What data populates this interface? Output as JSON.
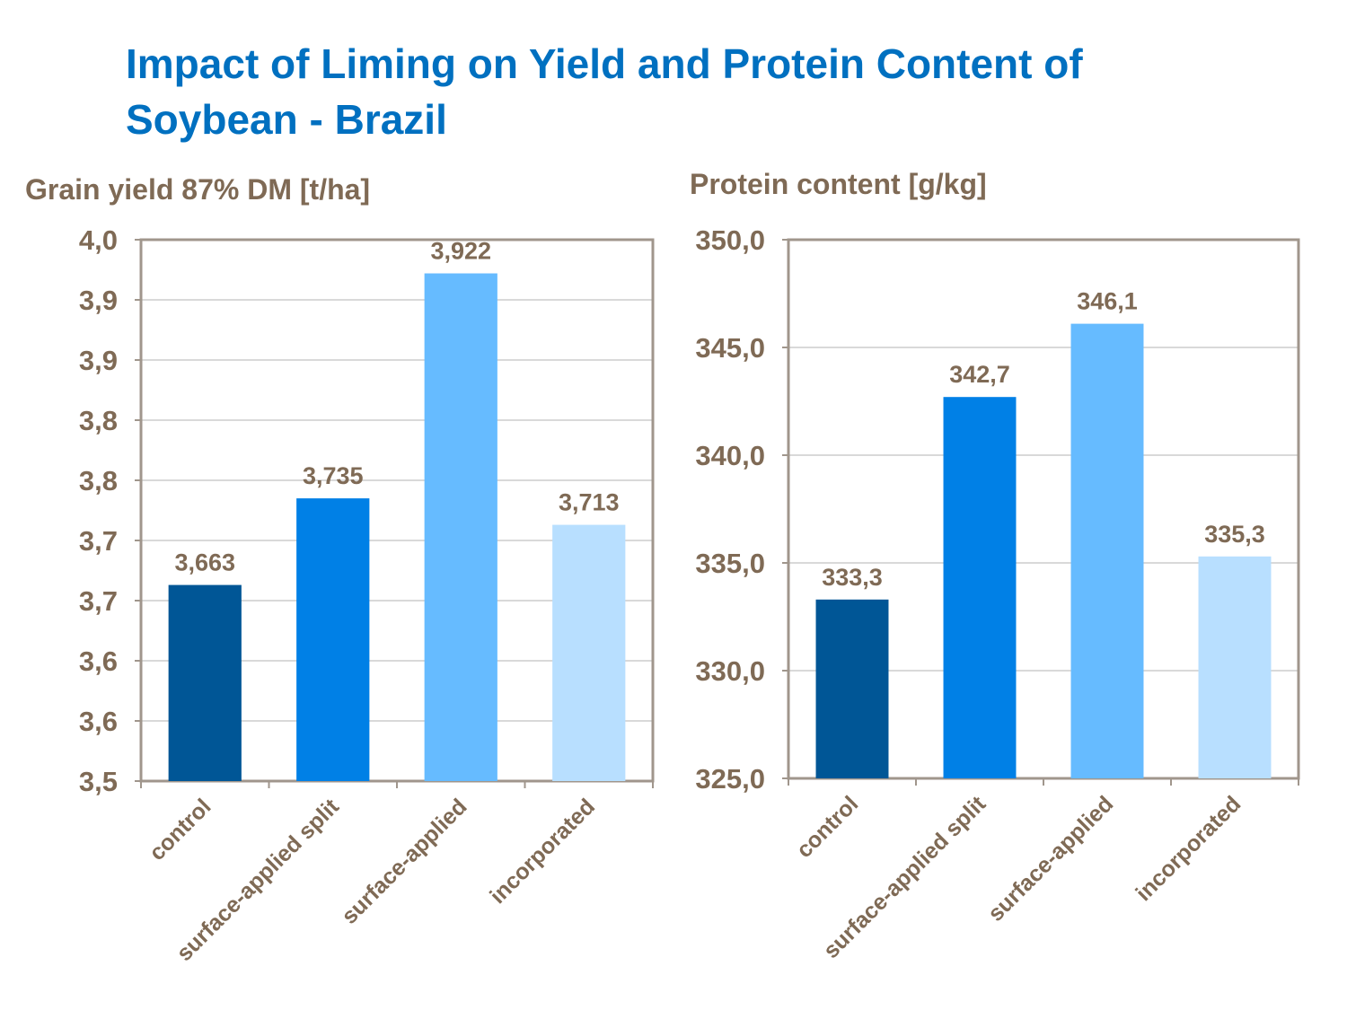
{
  "title": "Impact of Liming on Yield and Protein Content of Soybean - Brazil",
  "chart_data": [
    {
      "type": "bar",
      "ylabel": "Grain yield 87% DM [t/ha]",
      "categories": [
        "control",
        "surface-applied split",
        "surface-applied",
        "incorporated"
      ],
      "values": [
        3.663,
        3.735,
        3.922,
        3.713
      ],
      "value_labels": [
        "3,663",
        "3,735",
        "3,922",
        "3,713"
      ],
      "colors": [
        "#005696",
        "#0080e6",
        "#66bbff",
        "#b8dfff"
      ],
      "ylim": [
        3.5,
        3.95
      ],
      "yticks": [
        {
          "value": 3.5,
          "label": "3,5"
        },
        {
          "value": 3.55,
          "label": "3,6"
        },
        {
          "value": 3.6,
          "label": "3,6"
        },
        {
          "value": 3.65,
          "label": "3,7"
        },
        {
          "value": 3.7,
          "label": "3,7"
        },
        {
          "value": 3.75,
          "label": "3,8"
        },
        {
          "value": 3.8,
          "label": "3,8"
        },
        {
          "value": 3.85,
          "label": "3,9"
        },
        {
          "value": 3.9,
          "label": "3,9"
        },
        {
          "value": 3.95,
          "label": "4,0"
        }
      ],
      "grid": true
    },
    {
      "type": "bar",
      "ylabel": "Protein content [g/kg]",
      "categories": [
        "control",
        "surface-applied split",
        "surface-applied",
        "incorporated"
      ],
      "values": [
        333.3,
        342.7,
        346.1,
        335.3
      ],
      "value_labels": [
        "333,3",
        "342,7",
        "346,1",
        "335,3"
      ],
      "colors": [
        "#005696",
        "#0080e6",
        "#66bbff",
        "#b8dfff"
      ],
      "ylim": [
        325,
        350
      ],
      "yticks": [
        {
          "value": 325,
          "label": "325,0"
        },
        {
          "value": 330,
          "label": "330,0"
        },
        {
          "value": 335,
          "label": "335,0"
        },
        {
          "value": 340,
          "label": "340,0"
        },
        {
          "value": 345,
          "label": "345,0"
        },
        {
          "value": 350,
          "label": "350,0"
        }
      ],
      "grid": true
    }
  ]
}
